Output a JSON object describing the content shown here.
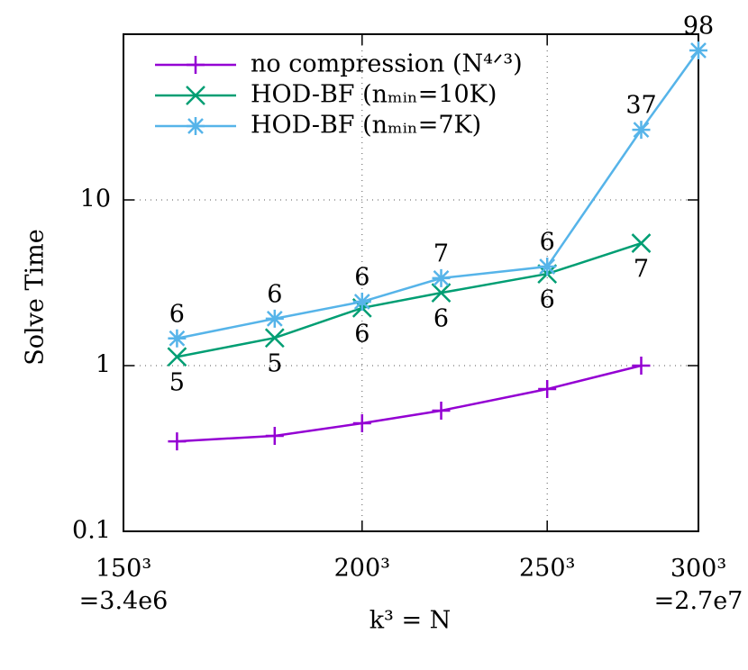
{
  "chart_data": {
    "type": "line",
    "xlabel": "k³ = N",
    "ylabel": "Solve Time",
    "xscale": "log",
    "yscale": "log",
    "xlim": [
      150,
      300
    ],
    "xticks": [
      {
        "value": 150,
        "label": "150³\n=3.4e6"
      },
      {
        "value": 200,
        "label": "200³"
      },
      {
        "value": 250,
        "label": "250³"
      },
      {
        "value": 300,
        "label": "300³\n=2.7e7"
      }
    ],
    "ylim": [
      0.1,
      100
    ],
    "yticks": [
      {
        "value": 0.1,
        "label": "0.1"
      },
      1,
      10
    ],
    "grid": true,
    "legend": "upper left",
    "series": [
      {
        "name": "no compression (N⁴ᐟ³)",
        "color": "#9400d3",
        "marker": "plus",
        "x": [
          160,
          180,
          200,
          220,
          250,
          280
        ],
        "values": [
          0.349,
          0.377,
          0.449,
          0.535,
          0.722,
          1.0
        ]
      },
      {
        "name": "HOD-BF (nₘᵢₙ=10K)",
        "color": "#009e73",
        "marker": "cross",
        "x": [
          160,
          180,
          200,
          220,
          250,
          280
        ],
        "values": [
          1.13,
          1.47,
          2.23,
          2.75,
          3.58,
          5.48
        ],
        "point_labels": [
          "5",
          "5",
          "6",
          "6",
          "6",
          "7"
        ],
        "label_position": "below"
      },
      {
        "name": "HOD-BF (nₘᵢₙ=7K)",
        "color": "#56b4e9",
        "marker": "star",
        "x": [
          160,
          180,
          200,
          220,
          250,
          280,
          300
        ],
        "values": [
          1.46,
          1.92,
          2.43,
          3.37,
          3.96,
          26.5,
          79.8
        ],
        "point_labels": [
          "6",
          "6",
          "6",
          "7",
          "6",
          "37",
          "98"
        ],
        "label_position": "above"
      }
    ]
  }
}
